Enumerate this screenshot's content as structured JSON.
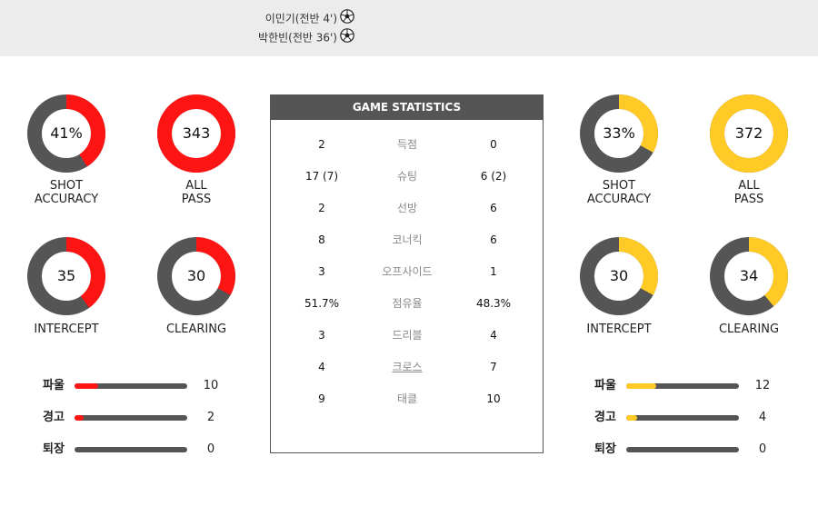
{
  "colors": {
    "home": "#ff1414",
    "away": "#ffc926",
    "track": "#555555"
  },
  "scorers": [
    {
      "text": "이민기(전반 4')",
      "icon": "soccer-ball-icon"
    },
    {
      "text": "박한빈(전반 36')",
      "icon": "soccer-ball-icon"
    }
  ],
  "home": {
    "donuts": [
      {
        "value": "41%",
        "fraction": 0.41,
        "label1": "SHOT",
        "label2": "ACCURACY"
      },
      {
        "value": "343",
        "fraction": 1.0,
        "label1": "ALL",
        "label2": "PASS"
      },
      {
        "value": "35",
        "fraction": 0.4,
        "label1": "INTERCEPT",
        "label2": ""
      },
      {
        "value": "30",
        "fraction": 0.33,
        "label1": "CLEARING",
        "label2": ""
      }
    ],
    "bars": [
      {
        "label": "파울",
        "value": "10",
        "fraction": 0.21
      },
      {
        "label": "경고",
        "value": "2",
        "fraction": 0.08
      },
      {
        "label": "퇴장",
        "value": "0",
        "fraction": 0
      }
    ]
  },
  "away": {
    "donuts": [
      {
        "value": "33%",
        "fraction": 0.33,
        "label1": "SHOT",
        "label2": "ACCURACY"
      },
      {
        "value": "372",
        "fraction": 1.0,
        "label1": "ALL",
        "label2": "PASS"
      },
      {
        "value": "30",
        "fraction": 0.33,
        "label1": "INTERCEPT",
        "label2": ""
      },
      {
        "value": "34",
        "fraction": 0.39,
        "label1": "CLEARING",
        "label2": ""
      }
    ],
    "bars": [
      {
        "label": "파울",
        "value": "12",
        "fraction": 0.27
      },
      {
        "label": "경고",
        "value": "4",
        "fraction": 0.1
      },
      {
        "label": "퇴장",
        "value": "0",
        "fraction": 0
      }
    ]
  },
  "stats": {
    "title": "GAME STATISTICS",
    "rows": [
      {
        "home": "2",
        "label": "득점",
        "away": "0"
      },
      {
        "home": "17 (7)",
        "label": "슈팅",
        "away": "6 (2)"
      },
      {
        "home": "2",
        "label": "선방",
        "away": "6"
      },
      {
        "home": "8",
        "label": "코너킥",
        "away": "6"
      },
      {
        "home": "3",
        "label": "오프사이드",
        "away": "1"
      },
      {
        "home": "51.7%",
        "label": "점유율",
        "away": "48.3%"
      },
      {
        "home": "3",
        "label": "드리블",
        "away": "4"
      },
      {
        "home": "4",
        "label": "크로스",
        "away": "7"
      },
      {
        "home": "9",
        "label": "태클",
        "away": "10"
      }
    ]
  }
}
